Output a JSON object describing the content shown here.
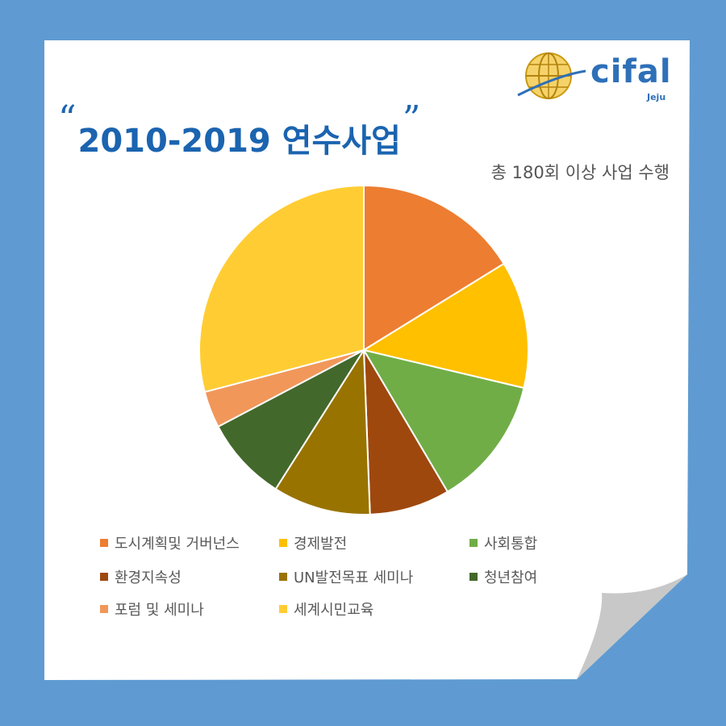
{
  "logo": {
    "word": "cifal",
    "sub": "Jeju"
  },
  "header": {
    "open_quote": "“",
    "title": "2010-2019 연수사업",
    "close_quote": "”",
    "subtitle": "총 180회 이상 사업 수행"
  },
  "colors": {
    "background": "#5f9bd2",
    "sheet": "#ffffff",
    "curl": "#c8c8c8",
    "title": "#1b64b0",
    "logo": "#2e70b8",
    "slice_border": "#ffffff"
  },
  "chart_data": {
    "type": "pie",
    "title": "",
    "legend_placement": "bottom",
    "slices": [
      {
        "label": "도시계획및 거버넌스",
        "value": 16.2,
        "color": "#ed7d31"
      },
      {
        "label": "경제발전",
        "value": 12.5,
        "color": "#ffc000"
      },
      {
        "label": "사회통합",
        "value": 12.8,
        "color": "#70ad47"
      },
      {
        "label": "환경지속성",
        "value": 7.9,
        "color": "#9e480e"
      },
      {
        "label": "UN발전목표 세미나",
        "value": 9.6,
        "color": "#997300"
      },
      {
        "label": "청년참여",
        "value": 8.3,
        "color": "#43682b"
      },
      {
        "label": "포럼 및 세미나",
        "value": 3.6,
        "color": "#f1975a"
      },
      {
        "label": "세계시민교육",
        "value": 29.1,
        "color": "#ffcd33"
      }
    ]
  }
}
